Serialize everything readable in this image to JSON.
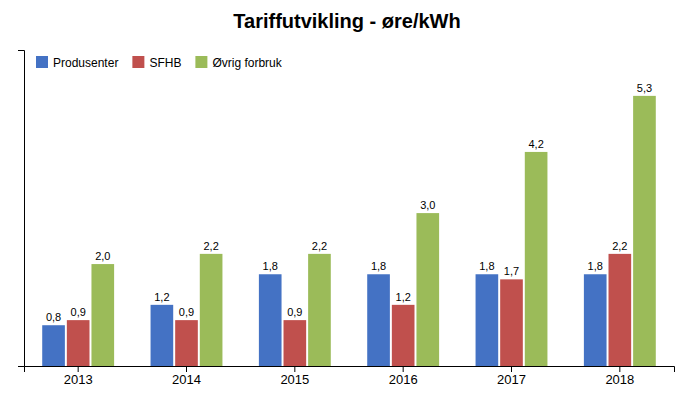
{
  "chart_data": {
    "type": "bar",
    "title": "Tariffutvikling - øre/kWh",
    "categories": [
      "2013",
      "2014",
      "2015",
      "2016",
      "2017",
      "2018"
    ],
    "series": [
      {
        "name": "Produsenter",
        "color": "#4472C4",
        "values": [
          0.8,
          1.2,
          1.8,
          1.8,
          1.8,
          1.8
        ],
        "value_labels": [
          "0,8",
          "1,2",
          "1,8",
          "1,8",
          "1,8",
          "1,8"
        ]
      },
      {
        "name": "SFHB",
        "color": "#C0504D",
        "values": [
          0.9,
          0.9,
          0.9,
          1.2,
          1.7,
          2.2
        ],
        "value_labels": [
          "0,9",
          "0,9",
          "0,9",
          "1,2",
          "1,7",
          "2,2"
        ]
      },
      {
        "name": "Øvrig forbruk",
        "color": "#9BBB59",
        "values": [
          2.0,
          2.2,
          2.2,
          3.0,
          4.2,
          5.3
        ],
        "value_labels": [
          "2,0",
          "2,2",
          "2,2",
          "3,0",
          "4,2",
          "5,3"
        ]
      }
    ],
    "ylim": [
      0,
      6.2
    ],
    "grid": false,
    "legend": "upper left",
    "data_labels": true,
    "tick_labels": "x"
  }
}
